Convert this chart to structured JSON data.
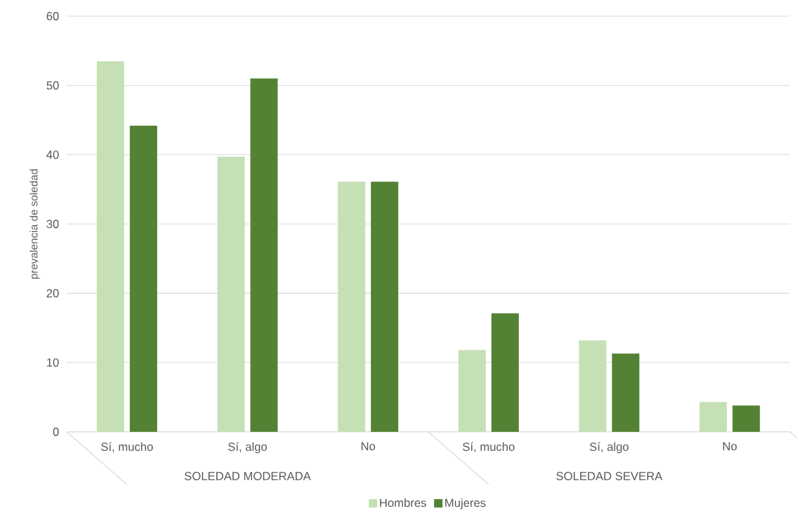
{
  "chart_data": {
    "type": "bar",
    "ylabel": "prevalencia de soledad",
    "categories": [
      "Sí, mucho",
      "Sí, algo",
      "No",
      "Sí, mucho",
      "Sí, algo",
      "No"
    ],
    "series": [
      {
        "name": "Hombres",
        "color": "#c5e0b4",
        "values": [
          53.5,
          39.7,
          36.1,
          11.8,
          13.2,
          4.3
        ]
      },
      {
        "name": "Mujeres",
        "color": "#548235",
        "values": [
          44.2,
          51.0,
          36.1,
          17.1,
          11.3,
          3.8
        ]
      }
    ],
    "annotations": [
      "SOLEDAD MODERADA",
      "SOLEDAD SEVERA"
    ],
    "ylim": [
      0,
      60
    ],
    "yticks": [
      0,
      10,
      20,
      30,
      40,
      50,
      60
    ],
    "grid": "y",
    "legend": "bottom"
  }
}
